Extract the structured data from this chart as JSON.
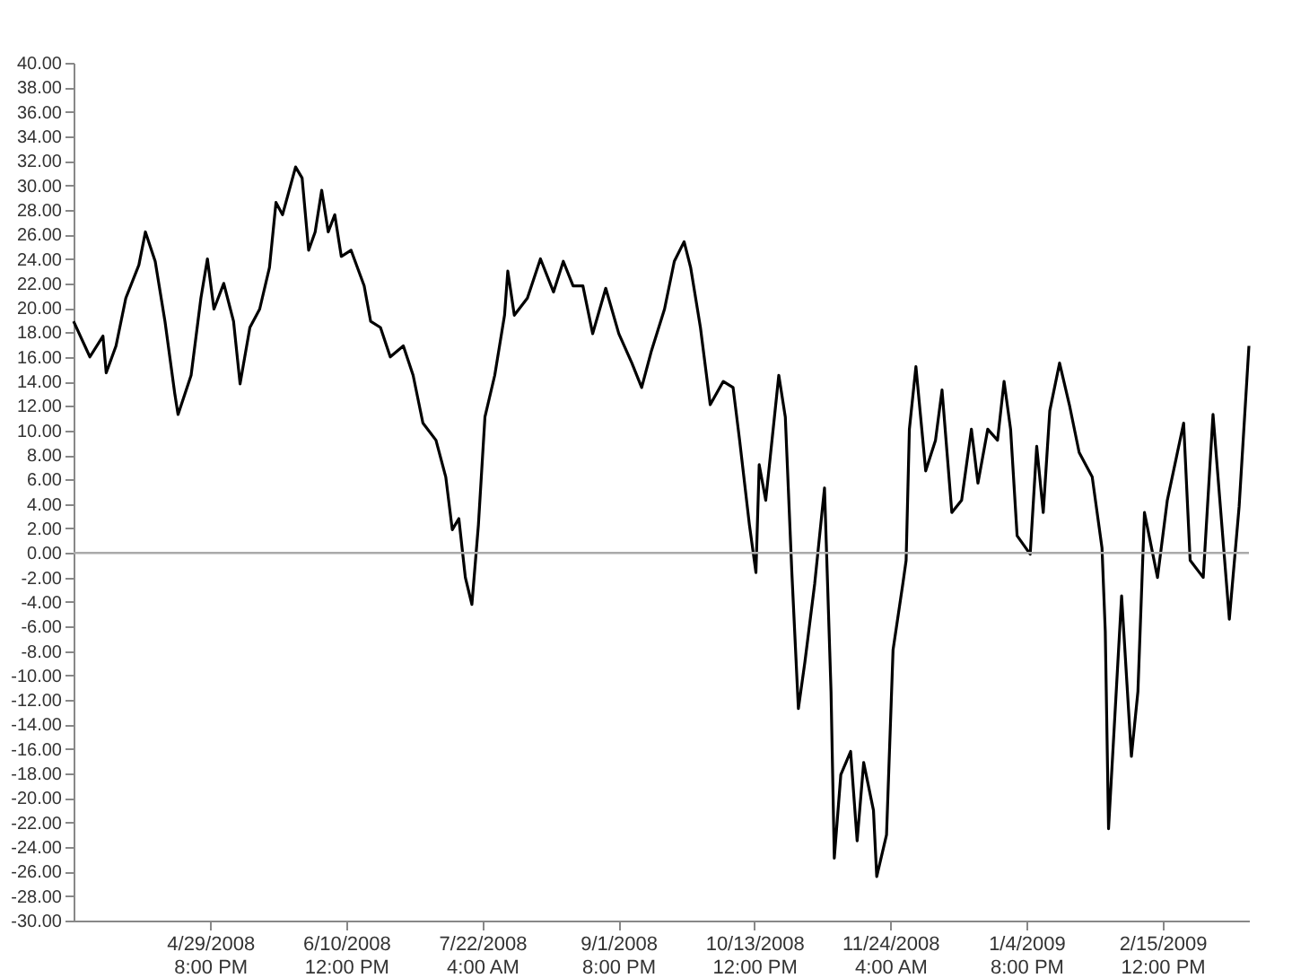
{
  "chart_data": {
    "type": "line",
    "x": [
      "2008-03-19",
      "2008-03-24",
      "2008-03-28",
      "2008-03-29",
      "2008-04-01",
      "2008-04-04",
      "2008-04-08",
      "2008-04-10",
      "2008-04-13",
      "2008-04-16",
      "2008-04-19",
      "2008-04-20",
      "2008-04-24",
      "2008-04-27",
      "2008-04-29",
      "2008-05-01",
      "2008-05-04",
      "2008-05-07",
      "2008-05-09",
      "2008-05-12",
      "2008-05-15",
      "2008-05-18",
      "2008-05-20",
      "2008-05-22",
      "2008-05-26",
      "2008-05-28",
      "2008-05-30",
      "2008-06-01",
      "2008-06-03",
      "2008-06-05",
      "2008-06-07",
      "2008-06-09",
      "2008-06-12",
      "2008-06-16",
      "2008-06-18",
      "2008-06-21",
      "2008-06-24",
      "2008-06-28",
      "2008-07-01",
      "2008-07-04",
      "2008-07-08",
      "2008-07-11",
      "2008-07-13",
      "2008-07-15",
      "2008-07-17",
      "2008-07-19",
      "2008-07-21",
      "2008-07-23",
      "2008-07-26",
      "2008-07-29",
      "2008-07-30",
      "2008-08-01",
      "2008-08-05",
      "2008-08-09",
      "2008-08-13",
      "2008-08-16",
      "2008-08-19",
      "2008-08-22",
      "2008-08-25",
      "2008-08-29",
      "2008-09-02",
      "2008-09-06",
      "2008-09-09",
      "2008-09-12",
      "2008-09-16",
      "2008-09-19",
      "2008-09-22",
      "2008-09-24",
      "2008-09-27",
      "2008-09-30",
      "2008-10-04",
      "2008-10-07",
      "2008-10-09",
      "2008-10-12",
      "2008-10-14",
      "2008-10-15",
      "2008-10-17",
      "2008-10-21",
      "2008-10-23",
      "2008-10-25",
      "2008-10-27",
      "2008-10-29",
      "2008-11-01",
      "2008-11-04",
      "2008-11-06",
      "2008-11-07",
      "2008-11-09",
      "2008-11-12",
      "2008-11-14",
      "2008-11-16",
      "2008-11-19",
      "2008-11-20",
      "2008-11-23",
      "2008-11-25",
      "2008-11-28",
      "2008-11-29",
      "2008-11-30",
      "2008-12-02",
      "2008-12-05",
      "2008-12-08",
      "2008-12-10",
      "2008-12-13",
      "2008-12-16",
      "2008-12-19",
      "2008-12-21",
      "2008-12-24",
      "2008-12-27",
      "2008-12-29",
      "2008-12-31",
      "2009-01-02",
      "2009-01-06",
      "2009-01-08",
      "2009-01-10",
      "2009-01-12",
      "2009-01-15",
      "2009-01-18",
      "2009-01-21",
      "2009-01-25",
      "2009-01-28",
      "2009-01-29",
      "2009-01-30",
      "2009-02-03",
      "2009-02-06",
      "2009-02-08",
      "2009-02-10",
      "2009-02-14",
      "2009-02-17",
      "2009-02-22",
      "2009-02-24",
      "2009-02-28",
      "2009-03-03",
      "2009-03-08",
      "2009-03-11",
      "2009-03-14"
    ],
    "series": [
      {
        "color": "#000000",
        "values": [
          18.9,
          16.0,
          17.7,
          14.7,
          16.9,
          20.8,
          23.5,
          26.2,
          23.8,
          18.9,
          13.0,
          11.3,
          14.5,
          20.8,
          24.0,
          19.9,
          22.0,
          18.9,
          13.8,
          18.4,
          19.9,
          23.3,
          28.6,
          27.6,
          31.5,
          30.6,
          24.7,
          26.2,
          29.6,
          26.2,
          27.6,
          24.2,
          24.7,
          21.8,
          18.9,
          18.4,
          16.0,
          16.9,
          14.5,
          10.6,
          9.2,
          6.2,
          1.9,
          2.8,
          -2.0,
          -4.2,
          2.3,
          11.1,
          14.5,
          19.4,
          23.0,
          19.4,
          20.8,
          24.0,
          21.3,
          23.8,
          21.8,
          21.8,
          17.9,
          21.6,
          17.9,
          15.5,
          13.5,
          16.5,
          19.9,
          23.8,
          25.4,
          23.3,
          18.4,
          12.1,
          14.0,
          13.5,
          9.2,
          2.3,
          -1.6,
          7.2,
          4.3,
          14.5,
          11.1,
          -1.6,
          -12.7,
          -8.9,
          -2.5,
          5.3,
          -11.3,
          -24.9,
          -18.1,
          -16.2,
          -23.5,
          -17.1,
          -21.0,
          -26.4,
          -23.0,
          -7.9,
          -2.5,
          -0.6,
          10.1,
          15.2,
          6.7,
          9.2,
          13.3,
          3.3,
          4.3,
          10.1,
          5.7,
          10.1,
          9.2,
          14.0,
          10.1,
          1.4,
          -0.1,
          8.7,
          3.3,
          11.6,
          15.5,
          12.1,
          8.2,
          6.2,
          0.4,
          -6.4,
          -22.5,
          -3.5,
          -16.6,
          -11.3,
          3.3,
          -2.0,
          4.3,
          10.6,
          -0.6,
          -2.0,
          11.3,
          -5.4,
          3.8,
          16.9
        ]
      }
    ],
    "xlim": [
      "2008-03-19",
      "2009-03-14"
    ],
    "xticks": [
      {
        "value": "2008-04-29T20:00",
        "label": "4/29/2008 8:00 PM"
      },
      {
        "value": "2008-06-10T12:00",
        "label": "6/10/2008 12:00 PM"
      },
      {
        "value": "2008-07-22T04:00",
        "label": "7/22/2008 4:00 AM"
      },
      {
        "value": "2008-09-01T20:00",
        "label": "9/1/2008 8:00 PM"
      },
      {
        "value": "2008-10-13T12:00",
        "label": "10/13/2008 12:00 PM"
      },
      {
        "value": "2008-11-24T04:00",
        "label": "11/24/2008 4:00 AM"
      },
      {
        "value": "2009-01-04T20:00",
        "label": "1/4/2009 8:00 PM"
      },
      {
        "value": "2009-02-15T12:00",
        "label": "2/15/2009 12:00 PM"
      }
    ],
    "ylim": [
      -30,
      40
    ],
    "yticks": [
      {
        "value": 40,
        "label": "40.00"
      },
      {
        "value": 38,
        "label": "38.00"
      },
      {
        "value": 36,
        "label": "36.00"
      },
      {
        "value": 34,
        "label": "34.00"
      },
      {
        "value": 32,
        "label": "32.00"
      },
      {
        "value": 30,
        "label": "30.00"
      },
      {
        "value": 28,
        "label": "28.00"
      },
      {
        "value": 26,
        "label": "26.00"
      },
      {
        "value": 24,
        "label": "24.00"
      },
      {
        "value": 22,
        "label": "22.00"
      },
      {
        "value": 20,
        "label": "20.00"
      },
      {
        "value": 18,
        "label": "18.00"
      },
      {
        "value": 16,
        "label": "16.00"
      },
      {
        "value": 14,
        "label": "14.00"
      },
      {
        "value": 12,
        "label": "12.00"
      },
      {
        "value": 10,
        "label": "10.00"
      },
      {
        "value": 8,
        "label": "8.00"
      },
      {
        "value": 6,
        "label": "6.00"
      },
      {
        "value": 4,
        "label": "4.00"
      },
      {
        "value": 2,
        "label": "2.00"
      },
      {
        "value": 0,
        "label": "0.00"
      },
      {
        "value": -2,
        "label": "-2.00"
      },
      {
        "value": -4,
        "label": "-4.00"
      },
      {
        "value": -6,
        "label": "-6.00"
      },
      {
        "value": -8,
        "label": "-8.00"
      },
      {
        "value": -10,
        "label": "-10.00"
      },
      {
        "value": -12,
        "label": "-12.00"
      },
      {
        "value": -14,
        "label": "-14.00"
      },
      {
        "value": -16,
        "label": "-16.00"
      },
      {
        "value": -18,
        "label": "-18.00"
      },
      {
        "value": -20,
        "label": "-20.00"
      },
      {
        "value": -22,
        "label": "-22.00"
      },
      {
        "value": -24,
        "label": "-24.00"
      },
      {
        "value": -26,
        "label": "-26.00"
      },
      {
        "value": -28,
        "label": "-28.00"
      },
      {
        "value": -30,
        "label": "-30.00"
      }
    ],
    "ref_lines": [
      {
        "axis": "y",
        "value": 0,
        "color": "#aaaaaa"
      }
    ],
    "grid": false,
    "marker": "none",
    "line_style": "solid"
  }
}
